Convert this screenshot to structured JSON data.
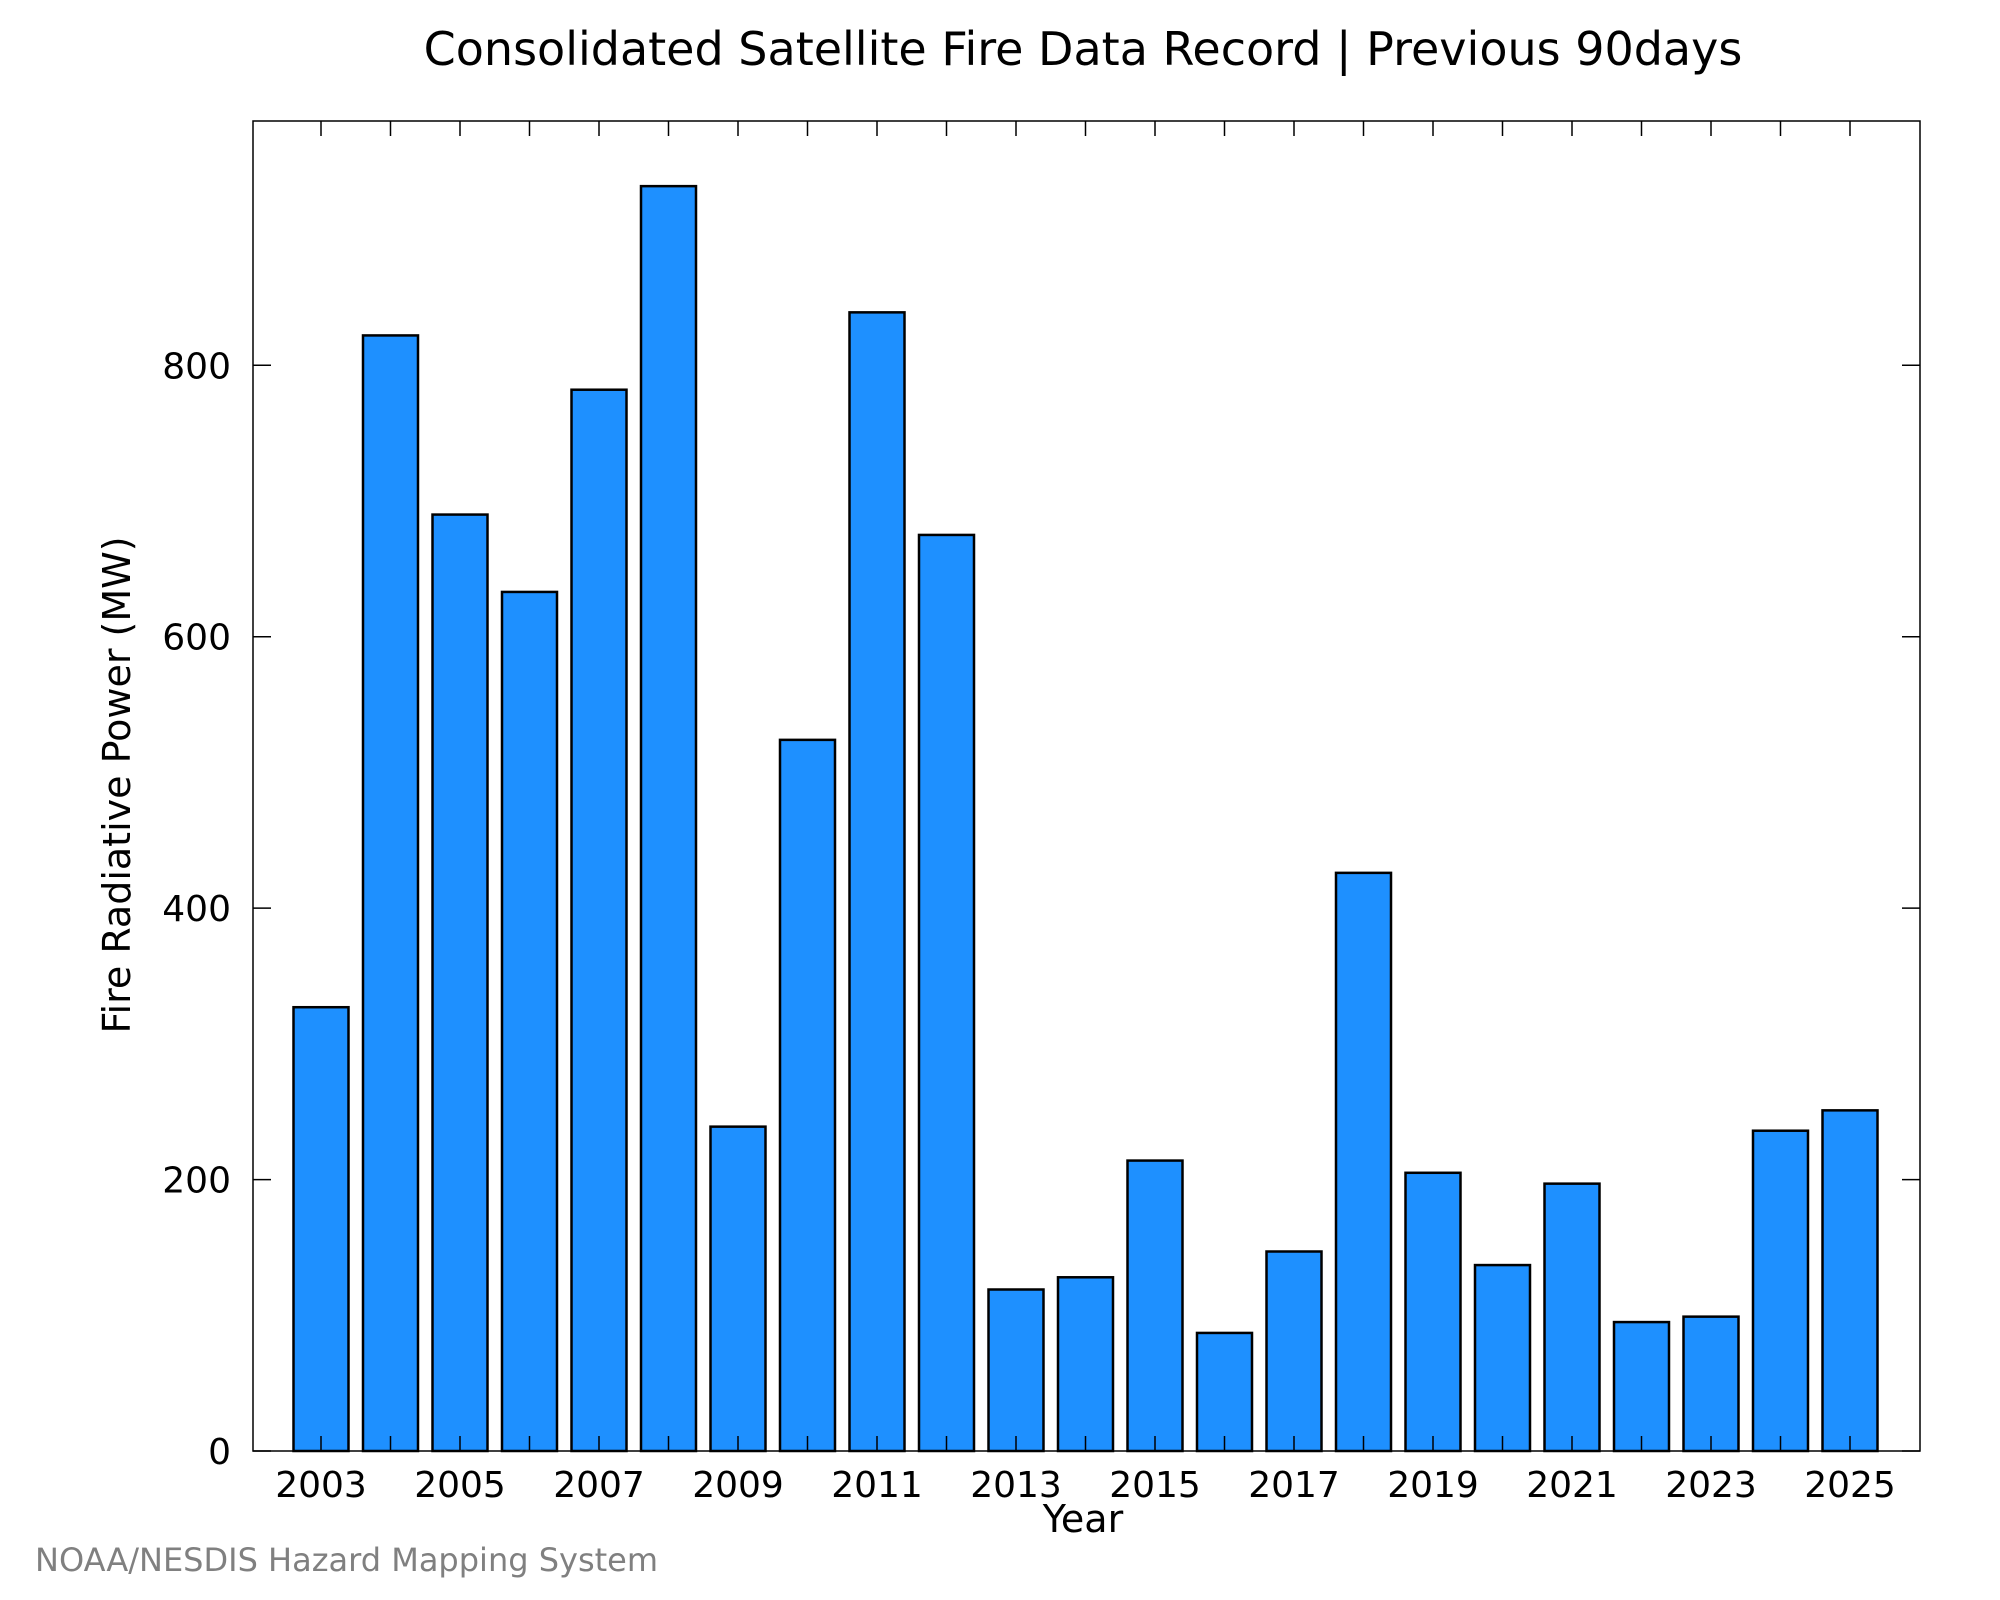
{
  "chart_data": {
    "type": "bar",
    "title": "Consolidated Satellite Fire Data Record | Previous 90days",
    "xlabel": "Year",
    "ylabel": "Fire Radiative Power (MW)",
    "ylim": [
      0,
      980
    ],
    "yticks": [
      0,
      200,
      400,
      600,
      800
    ],
    "xtick_labels": [
      "2003",
      "2005",
      "2007",
      "2009",
      "2011",
      "2013",
      "2015",
      "2017",
      "2019",
      "2021",
      "2023",
      "2025"
    ],
    "categories": [
      "2003",
      "2004",
      "2005",
      "2006",
      "2007",
      "2008",
      "2009",
      "2010",
      "2011",
      "2012",
      "2013",
      "2014",
      "2015",
      "2016",
      "2017",
      "2018",
      "2019",
      "2020",
      "2021",
      "2022",
      "2023",
      "2024",
      "2025"
    ],
    "values": [
      327,
      822,
      690,
      633,
      782,
      932,
      239,
      524,
      839,
      675,
      119,
      128,
      214,
      87,
      147,
      426,
      205,
      137,
      197,
      95,
      99,
      236,
      251
    ],
    "bar_color": "#1E90FF",
    "grid": false,
    "legend": "none"
  },
  "credit": "NOAA/NESDIS Hazard Mapping System"
}
